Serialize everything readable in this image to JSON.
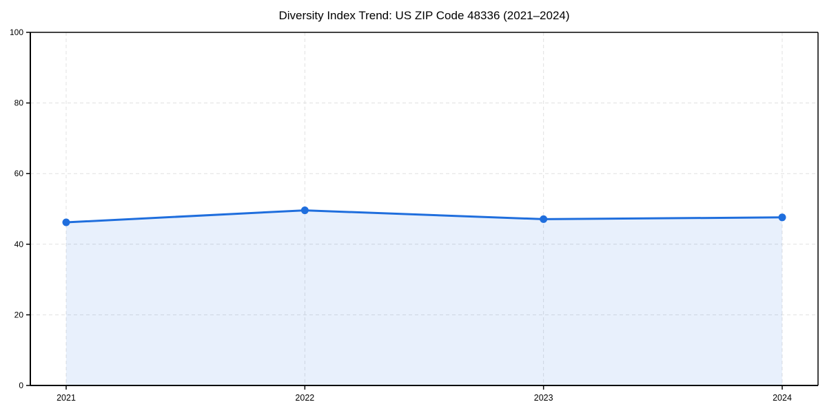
{
  "chart_data": {
    "type": "area",
    "title": "Diversity Index Trend: US ZIP Code 48336 (2021–2024)",
    "categories": [
      "2021",
      "2022",
      "2023",
      "2024"
    ],
    "series": [
      {
        "name": "Diversity Index",
        "values": [
          46.2,
          49.6,
          47.1,
          47.6
        ]
      }
    ],
    "xlabel": "",
    "ylabel": "",
    "ylim": [
      0,
      100
    ],
    "y_ticks": [
      0,
      20,
      40,
      60,
      80,
      100
    ],
    "grid": true,
    "grid_style": "dashed",
    "legend_position": "none",
    "line_color": "#1f6edd",
    "marker_color": "#1f6edd",
    "fill_color": "rgba(31, 110, 221, 0.10)",
    "grid_color": "#e0e0e0",
    "axis_color": "#000000",
    "tick_label_color": "#000000",
    "background_color": "#ffffff"
  }
}
